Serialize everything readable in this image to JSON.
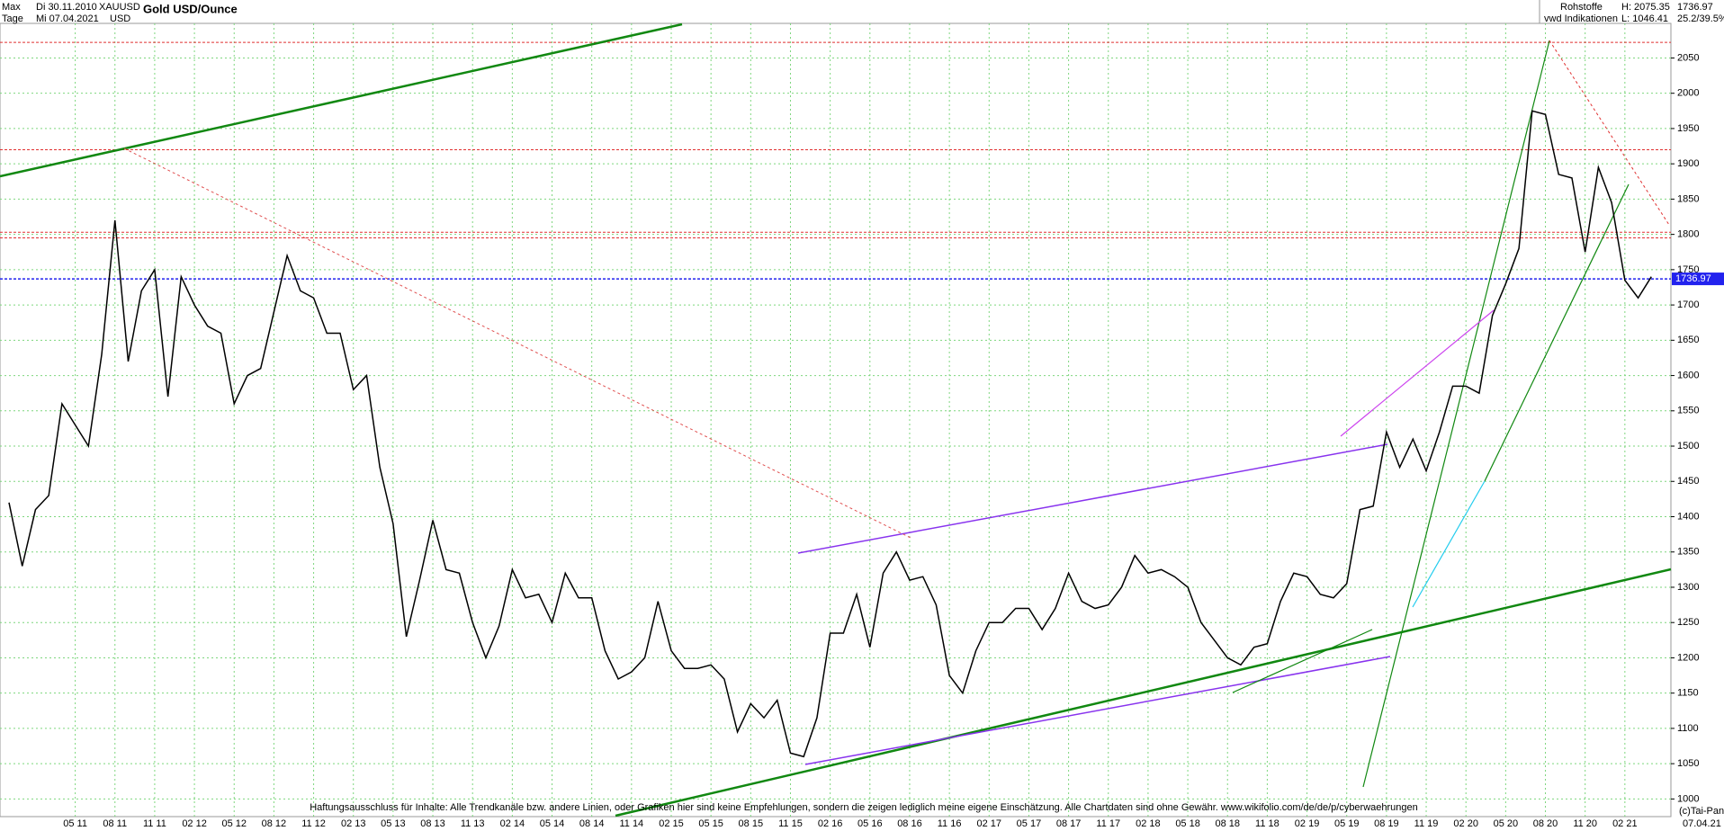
{
  "header": {
    "range": "Max",
    "from": "Di 30.11.2010",
    "symbol": "XAUUSD",
    "title": "Gold USD/Ounce",
    "period": "Tage",
    "to": "Mi 07.04.2021",
    "currency": "USD",
    "group": "Rohstoffe",
    "source": "vwd Indikationen",
    "high": "H: 2075.35",
    "low": "L: 1046.41",
    "change": "25.2/39.5%"
  },
  "footer": {
    "disclaimer": "Haftungsausschluss für Inhalte: Alle Trendkanäle bzw. andere Linien, oder Grafiken hier sind keine Empfehlungen, sondern die zeigen lediglich meine eigene Einschätzung. Alle Chartdaten sind ohne Gewähr.  www.wikifolio.com/de/de/p/cyberwaehrungen",
    "copyright": "(c)Tai-Pan",
    "date": "07.04.21"
  },
  "chart_data": {
    "type": "line",
    "color": "#000000",
    "grid": true,
    "categories": [
      null,
      null,
      null,
      null,
      null,
      "05 11",
      null,
      null,
      "08 11",
      null,
      null,
      "11 11",
      null,
      null,
      "02 12",
      null,
      null,
      "05 12",
      null,
      null,
      "08 12",
      null,
      null,
      "11 12",
      null,
      null,
      "02 13",
      null,
      null,
      "05 13",
      null,
      null,
      "08 13",
      null,
      null,
      "11 13",
      null,
      null,
      "02 14",
      null,
      null,
      "05 14",
      null,
      null,
      "08 14",
      null,
      null,
      "11 14",
      null,
      null,
      "02 15",
      null,
      null,
      "05 15",
      null,
      null,
      "08 15",
      null,
      null,
      "11 15",
      null,
      null,
      "02 16",
      null,
      null,
      "05 16",
      null,
      null,
      "08 16",
      null,
      null,
      "11 16",
      null,
      null,
      "02 17",
      null,
      null,
      "05 17",
      null,
      null,
      "08 17",
      null,
      null,
      "11 17",
      null,
      null,
      "02 18",
      null,
      null,
      "05 18",
      null,
      null,
      "08 18",
      null,
      null,
      "11 18",
      null,
      null,
      "02 19",
      null,
      null,
      "05 19",
      null,
      null,
      "08 19",
      null,
      null,
      "11 19",
      null,
      null,
      "02 20",
      null,
      null,
      "05 20",
      null,
      null,
      "08 20",
      null,
      null,
      "11 20",
      null,
      null,
      "02 21",
      null,
      null
    ],
    "values": [
      1420,
      1330,
      1410,
      1430,
      1560,
      1530,
      1500,
      1630,
      1820,
      1620,
      1720,
      1750,
      1570,
      1740,
      1700,
      1670,
      1660,
      1560,
      1600,
      1610,
      1690,
      1770,
      1720,
      1710,
      1660,
      1660,
      1580,
      1600,
      1470,
      1390,
      1230,
      1310,
      1395,
      1325,
      1320,
      1250,
      1200,
      1245,
      1325,
      1285,
      1290,
      1250,
      1320,
      1285,
      1285,
      1210,
      1170,
      1180,
      1200,
      1280,
      1210,
      1185,
      1185,
      1190,
      1170,
      1095,
      1135,
      1115,
      1140,
      1065,
      1060,
      1115,
      1235,
      1235,
      1290,
      1215,
      1320,
      1350,
      1310,
      1315,
      1275,
      1175,
      1150,
      1210,
      1250,
      1250,
      1270,
      1270,
      1240,
      1270,
      1320,
      1280,
      1270,
      1275,
      1300,
      1345,
      1320,
      1325,
      1315,
      1300,
      1250,
      1225,
      1200,
      1190,
      1215,
      1220,
      1280,
      1320,
      1315,
      1290,
      1285,
      1305,
      1410,
      1415,
      1520,
      1470,
      1510,
      1465,
      1520,
      1585,
      1585,
      1575,
      1685,
      1730,
      1780,
      1975,
      1970,
      1885,
      1880,
      1775,
      1895,
      1845,
      1735,
      1710,
      1740
    ],
    "ylim": [
      975,
      2099
    ],
    "yticks": [
      1000,
      1050,
      1100,
      1150,
      1200,
      1250,
      1300,
      1350,
      1400,
      1450,
      1500,
      1550,
      1600,
      1650,
      1700,
      1750,
      1800,
      1850,
      1900,
      1950,
      2000,
      2050
    ],
    "reference_lines": [
      {
        "value": 2072,
        "color": "#e03030"
      },
      {
        "value": 1920,
        "color": "#e03030"
      },
      {
        "value": 1803,
        "color": "#e03030"
      },
      {
        "value": 1795,
        "color": "#e03030"
      }
    ],
    "last_price": 1736.97,
    "last_price_color": "#2222ee"
  }
}
